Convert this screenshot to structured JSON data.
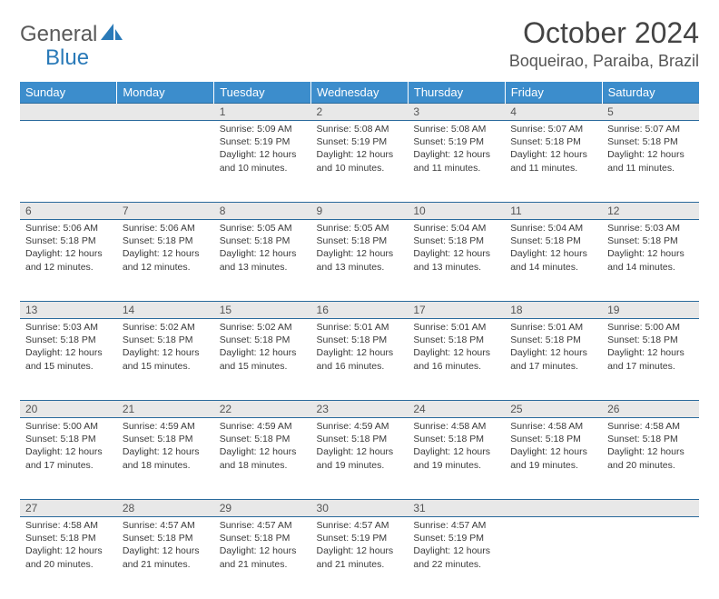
{
  "brand": {
    "part1": "General",
    "part2": "Blue"
  },
  "title": "October 2024",
  "location": "Boqueirao, Paraiba, Brazil",
  "colors": {
    "header_bg": "#3c8dcc",
    "header_text": "#ffffff",
    "daynum_bg": "#e8e8e8",
    "rule": "#2a6a9c",
    "body_text": "#3a3a3a",
    "logo_gray": "#5a5a5a",
    "logo_blue": "#2a7ab8",
    "page_bg": "#ffffff"
  },
  "typography": {
    "title_fontsize": 32,
    "location_fontsize": 18,
    "dayheader_fontsize": 13,
    "daynum_fontsize": 12,
    "cell_fontsize": 10.5
  },
  "day_headers": [
    "Sunday",
    "Monday",
    "Tuesday",
    "Wednesday",
    "Thursday",
    "Friday",
    "Saturday"
  ],
  "weeks": [
    [
      null,
      null,
      {
        "n": "1",
        "sunrise": "5:09 AM",
        "sunset": "5:19 PM",
        "daylight": "12 hours and 10 minutes."
      },
      {
        "n": "2",
        "sunrise": "5:08 AM",
        "sunset": "5:19 PM",
        "daylight": "12 hours and 10 minutes."
      },
      {
        "n": "3",
        "sunrise": "5:08 AM",
        "sunset": "5:19 PM",
        "daylight": "12 hours and 11 minutes."
      },
      {
        "n": "4",
        "sunrise": "5:07 AM",
        "sunset": "5:18 PM",
        "daylight": "12 hours and 11 minutes."
      },
      {
        "n": "5",
        "sunrise": "5:07 AM",
        "sunset": "5:18 PM",
        "daylight": "12 hours and 11 minutes."
      }
    ],
    [
      {
        "n": "6",
        "sunrise": "5:06 AM",
        "sunset": "5:18 PM",
        "daylight": "12 hours and 12 minutes."
      },
      {
        "n": "7",
        "sunrise": "5:06 AM",
        "sunset": "5:18 PM",
        "daylight": "12 hours and 12 minutes."
      },
      {
        "n": "8",
        "sunrise": "5:05 AM",
        "sunset": "5:18 PM",
        "daylight": "12 hours and 13 minutes."
      },
      {
        "n": "9",
        "sunrise": "5:05 AM",
        "sunset": "5:18 PM",
        "daylight": "12 hours and 13 minutes."
      },
      {
        "n": "10",
        "sunrise": "5:04 AM",
        "sunset": "5:18 PM",
        "daylight": "12 hours and 13 minutes."
      },
      {
        "n": "11",
        "sunrise": "5:04 AM",
        "sunset": "5:18 PM",
        "daylight": "12 hours and 14 minutes."
      },
      {
        "n": "12",
        "sunrise": "5:03 AM",
        "sunset": "5:18 PM",
        "daylight": "12 hours and 14 minutes."
      }
    ],
    [
      {
        "n": "13",
        "sunrise": "5:03 AM",
        "sunset": "5:18 PM",
        "daylight": "12 hours and 15 minutes."
      },
      {
        "n": "14",
        "sunrise": "5:02 AM",
        "sunset": "5:18 PM",
        "daylight": "12 hours and 15 minutes."
      },
      {
        "n": "15",
        "sunrise": "5:02 AM",
        "sunset": "5:18 PM",
        "daylight": "12 hours and 15 minutes."
      },
      {
        "n": "16",
        "sunrise": "5:01 AM",
        "sunset": "5:18 PM",
        "daylight": "12 hours and 16 minutes."
      },
      {
        "n": "17",
        "sunrise": "5:01 AM",
        "sunset": "5:18 PM",
        "daylight": "12 hours and 16 minutes."
      },
      {
        "n": "18",
        "sunrise": "5:01 AM",
        "sunset": "5:18 PM",
        "daylight": "12 hours and 17 minutes."
      },
      {
        "n": "19",
        "sunrise": "5:00 AM",
        "sunset": "5:18 PM",
        "daylight": "12 hours and 17 minutes."
      }
    ],
    [
      {
        "n": "20",
        "sunrise": "5:00 AM",
        "sunset": "5:18 PM",
        "daylight": "12 hours and 17 minutes."
      },
      {
        "n": "21",
        "sunrise": "4:59 AM",
        "sunset": "5:18 PM",
        "daylight": "12 hours and 18 minutes."
      },
      {
        "n": "22",
        "sunrise": "4:59 AM",
        "sunset": "5:18 PM",
        "daylight": "12 hours and 18 minutes."
      },
      {
        "n": "23",
        "sunrise": "4:59 AM",
        "sunset": "5:18 PM",
        "daylight": "12 hours and 19 minutes."
      },
      {
        "n": "24",
        "sunrise": "4:58 AM",
        "sunset": "5:18 PM",
        "daylight": "12 hours and 19 minutes."
      },
      {
        "n": "25",
        "sunrise": "4:58 AM",
        "sunset": "5:18 PM",
        "daylight": "12 hours and 19 minutes."
      },
      {
        "n": "26",
        "sunrise": "4:58 AM",
        "sunset": "5:18 PM",
        "daylight": "12 hours and 20 minutes."
      }
    ],
    [
      {
        "n": "27",
        "sunrise": "4:58 AM",
        "sunset": "5:18 PM",
        "daylight": "12 hours and 20 minutes."
      },
      {
        "n": "28",
        "sunrise": "4:57 AM",
        "sunset": "5:18 PM",
        "daylight": "12 hours and 21 minutes."
      },
      {
        "n": "29",
        "sunrise": "4:57 AM",
        "sunset": "5:18 PM",
        "daylight": "12 hours and 21 minutes."
      },
      {
        "n": "30",
        "sunrise": "4:57 AM",
        "sunset": "5:19 PM",
        "daylight": "12 hours and 21 minutes."
      },
      {
        "n": "31",
        "sunrise": "4:57 AM",
        "sunset": "5:19 PM",
        "daylight": "12 hours and 22 minutes."
      },
      null,
      null
    ]
  ],
  "labels": {
    "sunrise": "Sunrise:",
    "sunset": "Sunset:",
    "daylight": "Daylight:"
  }
}
